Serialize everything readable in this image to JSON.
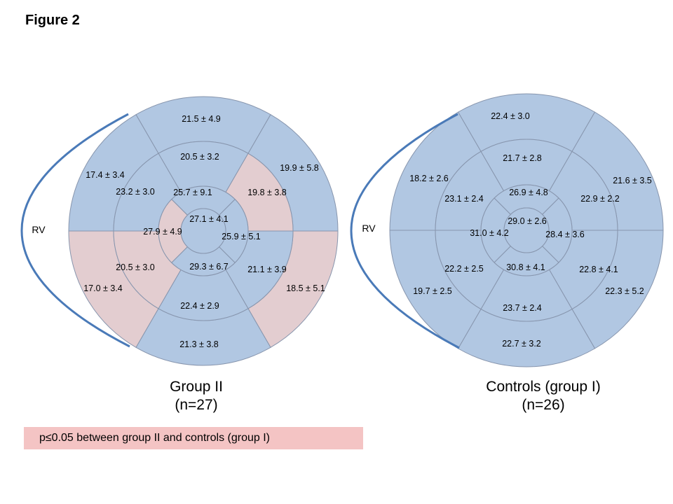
{
  "figure_title": "Figure 2",
  "colors": {
    "normal": "#b1c7e2",
    "significant": "#e3cdd0",
    "stroke": "#8795ad",
    "rv_curve": "#4a7ab8",
    "legend_bg": "#f4c4c4"
  },
  "plots": [
    {
      "rv_label": "RV",
      "caption_line1": "Group II",
      "caption_line2": "(n=27)",
      "segments": {
        "basal": [
          {
            "label": "21.5 ± 4.9",
            "highlight": false
          },
          {
            "label": "19.9 ± 5.8",
            "highlight": false
          },
          {
            "label": "18.5 ± 5.1",
            "highlight": true
          },
          {
            "label": "21.3 ± 3.8",
            "highlight": false
          },
          {
            "label": "17.0 ± 3.4",
            "highlight": true
          },
          {
            "label": "17.4 ± 3.4",
            "highlight": false
          }
        ],
        "mid": [
          {
            "label": "20.5 ± 3.2",
            "highlight": false
          },
          {
            "label": "19.8 ± 3.8",
            "highlight": true
          },
          {
            "label": "21.1 ± 3.9",
            "highlight": false
          },
          {
            "label": "22.4 ± 2.9",
            "highlight": false
          },
          {
            "label": "20.5 ± 3.0",
            "highlight": true
          },
          {
            "label": "23.2 ± 3.0",
            "highlight": false
          }
        ],
        "apical": [
          {
            "label": "25.7 ± 9.1",
            "highlight": false
          },
          {
            "label": "29.3 ± 6.7",
            "highlight": false
          },
          {
            "label": "27.9 ± 4.9",
            "highlight": true
          },
          {
            "label": "25.9 ± 5.1",
            "highlight": false
          }
        ],
        "apex": {
          "label": "27.1 ± 4.1",
          "highlight": false
        }
      }
    },
    {
      "rv_label": "RV",
      "caption_line1": "Controls (group I)",
      "caption_line2": "(n=26)",
      "segments": {
        "basal": [
          {
            "label": "22.4 ± 3.0",
            "highlight": false
          },
          {
            "label": "21.6 ± 3.5",
            "highlight": false
          },
          {
            "label": "22.3 ± 5.2",
            "highlight": false
          },
          {
            "label": "22.7 ± 3.2",
            "highlight": false
          },
          {
            "label": "19.7 ± 2.5",
            "highlight": false
          },
          {
            "label": "18.2 ± 2.6",
            "highlight": false
          }
        ],
        "mid": [
          {
            "label": "21.7 ± 2.8",
            "highlight": false
          },
          {
            "label": "22.9 ± 2.2",
            "highlight": false
          },
          {
            "label": "22.8 ± 4.1",
            "highlight": false
          },
          {
            "label": "23.7 ± 2.4",
            "highlight": false
          },
          {
            "label": "22.2 ± 2.5",
            "highlight": false
          },
          {
            "label": "23.1 ± 2.4",
            "highlight": false
          }
        ],
        "apical": [
          {
            "label": "26.9 ± 4.8",
            "highlight": false
          },
          {
            "label": "30.8 ± 4.1",
            "highlight": false
          },
          {
            "label": "31.0 ± 4.2",
            "highlight": false
          },
          {
            "label": "28.4 ± 3.6",
            "highlight": false
          }
        ],
        "apex": {
          "label": "29.0 ± 2.6",
          "highlight": false
        }
      }
    }
  ],
  "legend": {
    "text": "p≤0.05 between group II and controls (group I)"
  }
}
